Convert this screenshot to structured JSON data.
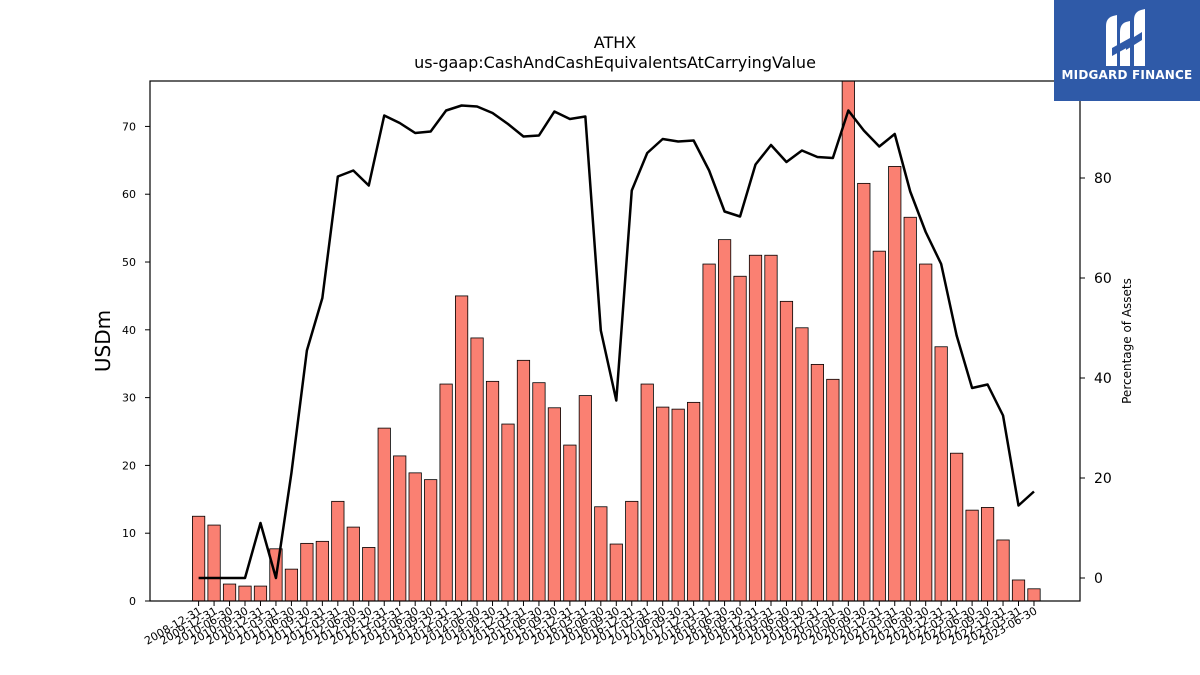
{
  "brand": {
    "name": "MIDGARD FINANCE",
    "bg_color": "#2f5aa8"
  },
  "chart_data": {
    "type": "bar",
    "title": "ATHX",
    "subtitle": "us-gaap:CashAndCashEquivalentsAtCarryingValue",
    "ylabel": "USDm",
    "y2label": "Percentage of Assets",
    "ylim": [
      0,
      76.7
    ],
    "y2lim": [
      -4.6,
      99.4
    ],
    "yticks": [
      0,
      10,
      20,
      30,
      40,
      50,
      60,
      70
    ],
    "y2ticks": [
      0,
      20,
      40,
      60,
      80
    ],
    "bar_color": "#fa8072",
    "line_color": "#000000",
    "categories": [
      "2008-12-31",
      "2009-12-31",
      "2010-06-30",
      "2010-09-30",
      "2010-12-31",
      "2011-03-31",
      "2011-06-30",
      "2011-09-30",
      "2011-12-31",
      "2012-03-31",
      "2012-06-30",
      "2012-09-30",
      "2012-12-31",
      "2013-03-31",
      "2013-06-30",
      "2013-09-30",
      "2013-12-31",
      "2014-03-31",
      "2014-06-30",
      "2014-09-30",
      "2014-12-31",
      "2015-03-31",
      "2015-06-30",
      "2015-09-30",
      "2015-12-31",
      "2016-03-31",
      "2016-06-30",
      "2016-09-30",
      "2016-12-31",
      "2017-03-31",
      "2017-06-30",
      "2017-09-30",
      "2017-12-31",
      "2018-03-31",
      "2018-06-30",
      "2018-09-30",
      "2018-12-31",
      "2019-03-31",
      "2019-06-30",
      "2019-09-30",
      "2019-12-31",
      "2020-03-31",
      "2020-06-30",
      "2020-09-30",
      "2020-12-31",
      "2021-03-31",
      "2021-06-30",
      "2021-09-30",
      "2021-12-31",
      "2022-03-31",
      "2022-06-30",
      "2022-09-30",
      "2022-12-31",
      "2023-03-31",
      "2023-06-30"
    ],
    "series": [
      {
        "type": "bar",
        "values": [
          12.5,
          11.2,
          2.5,
          2.2,
          2.2,
          7.7,
          4.7,
          8.5,
          8.8,
          14.7,
          10.9,
          7.9,
          25.5,
          21.4,
          18.9,
          17.9,
          32.0,
          45.0,
          38.8,
          32.4,
          26.1,
          35.5,
          32.2,
          28.5,
          23.0,
          30.3,
          13.9,
          8.4,
          14.7,
          32.0,
          28.6,
          28.3,
          29.3,
          49.7,
          53.3,
          47.9,
          51.0,
          51.0,
          44.2,
          40.3,
          34.9,
          32.7,
          76.7,
          61.6,
          51.6,
          64.1,
          56.6,
          49.7,
          37.5,
          21.8,
          13.4,
          13.8,
          9.0,
          3.1,
          1.8
        ]
      },
      {
        "type": "line",
        "values": [
          0.0,
          0.0,
          0.0,
          0.0,
          11.0,
          0.0,
          21.0,
          45.5,
          56.0,
          80.3,
          81.5,
          78.5,
          92.5,
          91.0,
          89.0,
          89.3,
          93.5,
          94.5,
          94.3,
          93.0,
          90.8,
          88.3,
          88.5,
          93.3,
          91.8,
          92.3,
          49.5,
          35.5,
          77.5,
          85.0,
          87.8,
          87.3,
          87.5,
          81.5,
          73.3,
          72.3,
          82.7,
          86.6,
          83.2,
          85.5,
          84.2,
          84.0,
          93.5,
          89.5,
          86.3,
          88.8,
          77.3,
          69.2,
          62.8,
          48.5,
          38.0,
          38.7,
          32.5,
          14.5,
          17.3
        ]
      }
    ]
  }
}
